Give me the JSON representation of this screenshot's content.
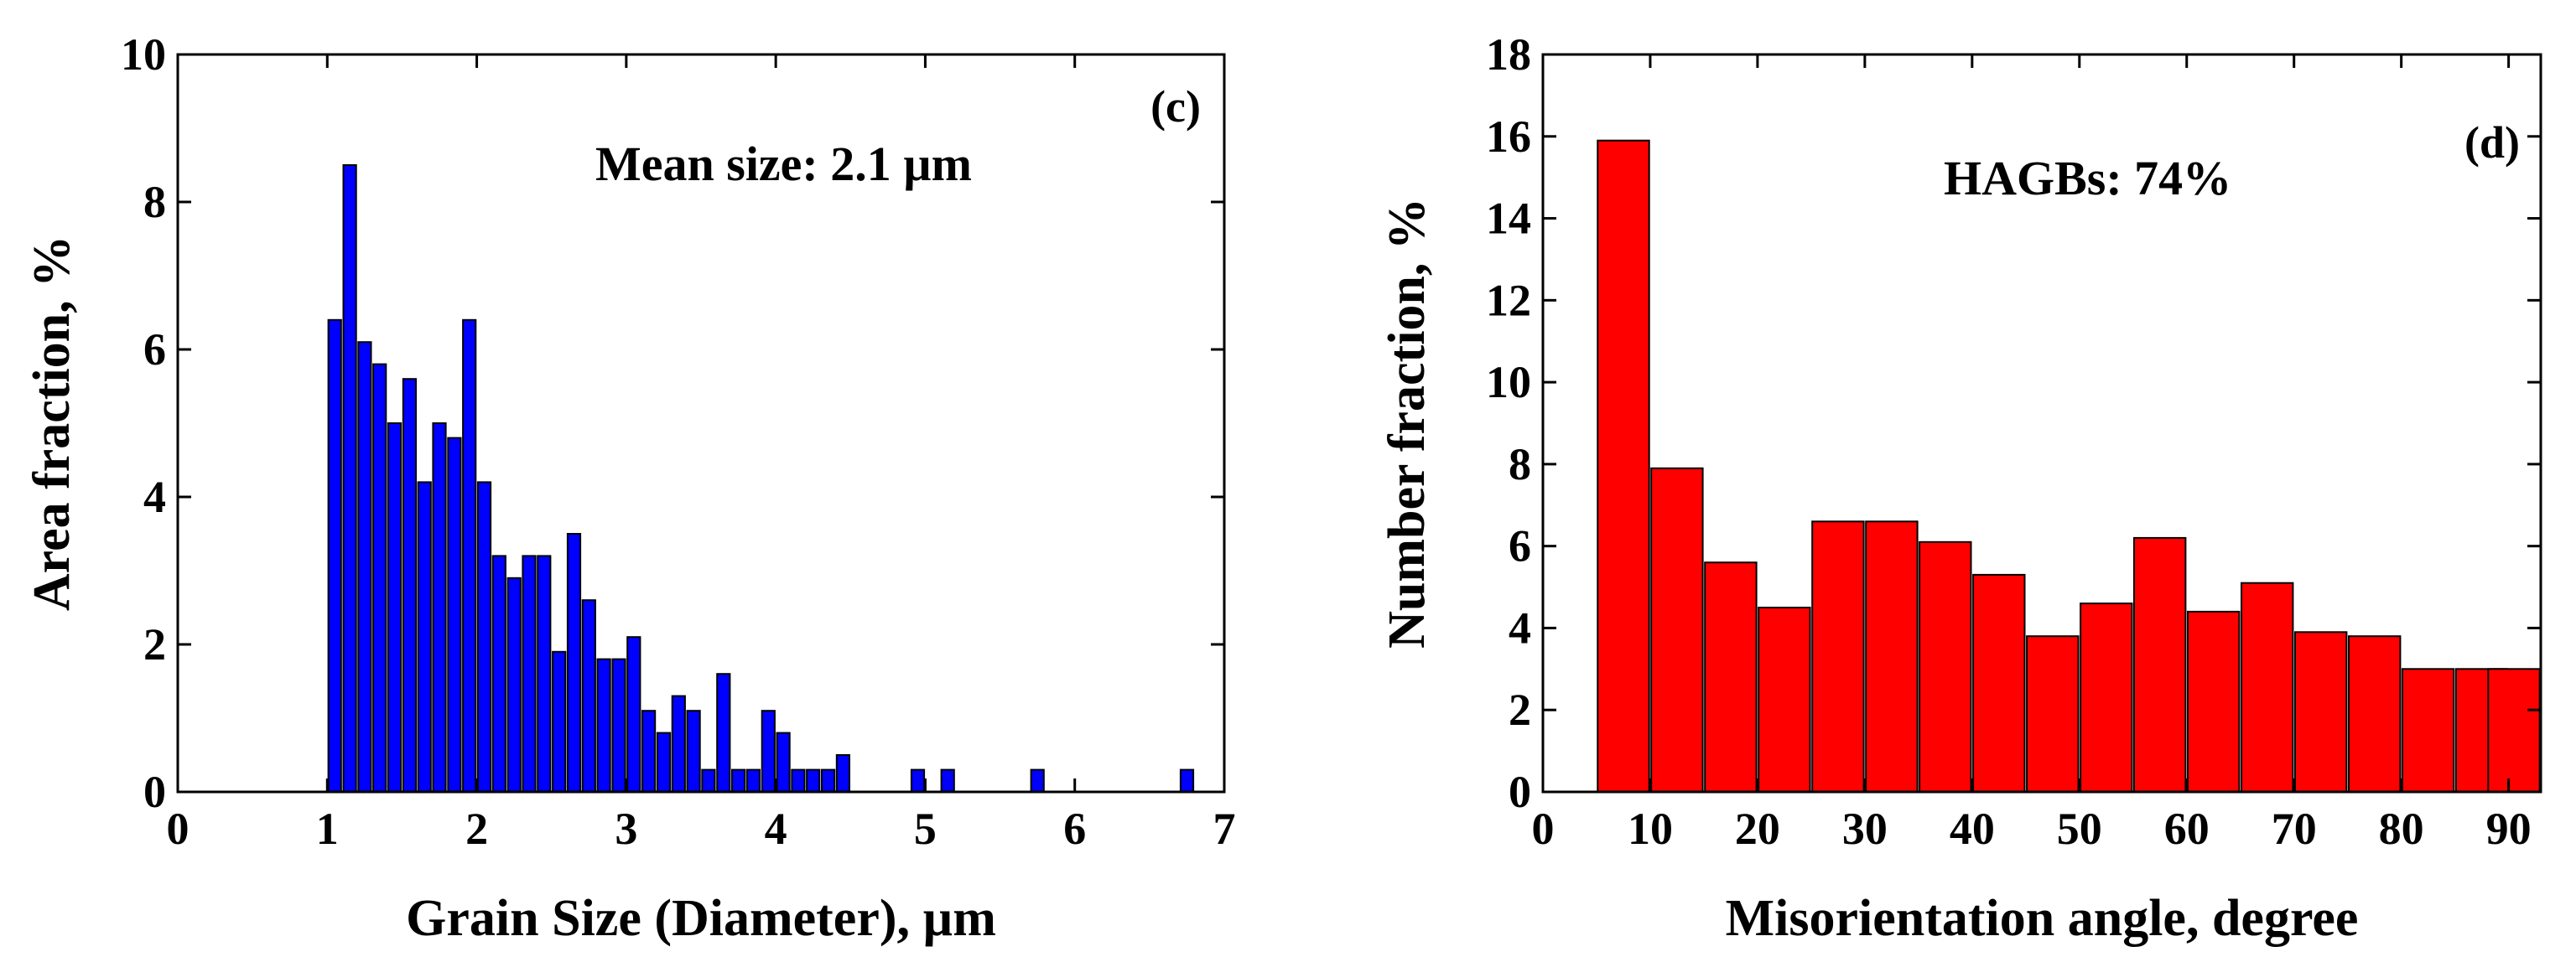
{
  "chart_data": [
    {
      "type": "bar",
      "panel_label": "(c)",
      "title": "",
      "annotation": "Mean size: 2.1 µm",
      "xlabel": "Grain Size (Diameter), µm",
      "ylabel": "Area fraction, %",
      "xlim": [
        0,
        7
      ],
      "ylim": [
        0,
        10
      ],
      "xticks": [
        0,
        1,
        2,
        3,
        4,
        5,
        6,
        7
      ],
      "yticks": [
        0,
        2,
        4,
        6,
        8,
        10
      ],
      "bar_width": 0.085,
      "bar_color": "#0000ff",
      "x": [
        1.05,
        1.15,
        1.25,
        1.35,
        1.45,
        1.55,
        1.65,
        1.75,
        1.85,
        1.95,
        2.05,
        2.15,
        2.25,
        2.35,
        2.45,
        2.55,
        2.65,
        2.75,
        2.85,
        2.95,
        3.05,
        3.15,
        3.25,
        3.35,
        3.45,
        3.55,
        3.65,
        3.75,
        3.85,
        3.95,
        4.05,
        4.15,
        4.25,
        4.35,
        4.45,
        4.95,
        5.15,
        5.75,
        6.75
      ],
      "values": [
        6.4,
        8.5,
        6.1,
        5.8,
        5.0,
        5.6,
        4.2,
        5.0,
        4.8,
        6.4,
        4.2,
        3.2,
        2.9,
        3.2,
        3.2,
        1.9,
        3.5,
        2.6,
        1.8,
        1.8,
        2.1,
        1.1,
        0.8,
        1.3,
        1.1,
        0.3,
        1.6,
        0.3,
        0.3,
        1.1,
        0.8,
        0.3,
        0.3,
        0.3,
        0.5,
        0.3,
        0.3,
        0.3,
        0.3
      ]
    },
    {
      "type": "bar",
      "panel_label": "(d)",
      "title": "",
      "annotation": "HAGBs: 74%",
      "xlabel": "Misorientation angle, degree",
      "ylabel": "Number fraction, %",
      "xlim": [
        0,
        93
      ],
      "ylim": [
        0,
        18
      ],
      "xticks": [
        0,
        10,
        20,
        30,
        40,
        50,
        60,
        70,
        80,
        90
      ],
      "yticks": [
        0,
        2,
        4,
        6,
        8,
        10,
        12,
        14,
        16,
        18
      ],
      "bar_width": 4.8,
      "bar_color": "#ff0000",
      "x": [
        7.5,
        12.5,
        17.5,
        22.5,
        27.5,
        32.5,
        37.5,
        42.5,
        47.5,
        52.5,
        57.5,
        62.5,
        67.5,
        72.5,
        77.5,
        82.5,
        87.5,
        90.5
      ],
      "values": [
        15.9,
        7.9,
        5.6,
        4.5,
        6.6,
        6.6,
        6.1,
        5.3,
        3.8,
        4.6,
        6.2,
        4.4,
        5.1,
        3.9,
        3.8,
        3.0,
        3.0,
        3.0
      ]
    }
  ]
}
